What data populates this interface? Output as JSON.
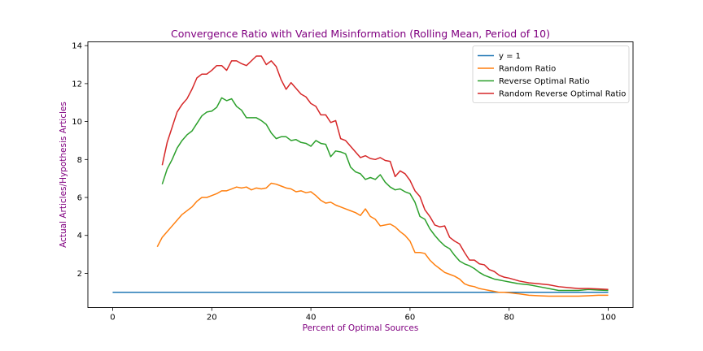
{
  "chart_data": {
    "type": "line",
    "title": "Convergence Ratio with Varied Misinformation (Rolling Mean, Period of 10)",
    "xlabel": "Percent of Optimal Sources",
    "ylabel": "Actual Articles/Hypothesis Articles",
    "xlim": [
      -5,
      105
    ],
    "ylim": [
      0.2,
      14.2
    ],
    "xticks": [
      0,
      20,
      40,
      60,
      80,
      100
    ],
    "yticks": [
      2,
      4,
      6,
      8,
      10,
      12,
      14
    ],
    "grid": false,
    "legend_position": "top-right",
    "colors": {
      "title": "#800080",
      "labels": "#800080"
    },
    "series": [
      {
        "name": "y = 1",
        "color": "#1f77b4",
        "x": [
          0,
          100
        ],
        "y": [
          1,
          1
        ]
      },
      {
        "name": "Random Ratio",
        "color": "#ff7f0e",
        "x": [
          9,
          10,
          12,
          14,
          16,
          17,
          18,
          19,
          20,
          21,
          22,
          23,
          24,
          25,
          26,
          27,
          28,
          29,
          30,
          31,
          32,
          33,
          34,
          35,
          36,
          37,
          38,
          39,
          40,
          41,
          42,
          43,
          44,
          45,
          46,
          47,
          48,
          49,
          50,
          51,
          52,
          53,
          54,
          55,
          56,
          57,
          58,
          59,
          60,
          61,
          62,
          63,
          64,
          65,
          66,
          67,
          68,
          69,
          70,
          71,
          72,
          73,
          74,
          75,
          76,
          77,
          78,
          79,
          80,
          82,
          84,
          86,
          88,
          90,
          92,
          94,
          96,
          98,
          100
        ],
        "y": [
          3.4,
          3.9,
          4.5,
          5.1,
          5.5,
          5.8,
          6.0,
          6.0,
          6.1,
          6.2,
          6.35,
          6.35,
          6.45,
          6.55,
          6.5,
          6.55,
          6.4,
          6.5,
          6.45,
          6.5,
          6.75,
          6.7,
          6.6,
          6.5,
          6.45,
          6.3,
          6.35,
          6.25,
          6.3,
          6.1,
          5.85,
          5.7,
          5.75,
          5.6,
          5.5,
          5.4,
          5.3,
          5.2,
          5.05,
          5.4,
          5.0,
          4.85,
          4.5,
          4.55,
          4.6,
          4.45,
          4.2,
          4.0,
          3.7,
          3.1,
          3.1,
          3.05,
          2.7,
          2.45,
          2.25,
          2.05,
          1.95,
          1.85,
          1.7,
          1.45,
          1.35,
          1.3,
          1.2,
          1.15,
          1.1,
          1.05,
          1.0,
          1.0,
          0.98,
          0.92,
          0.85,
          0.82,
          0.8,
          0.8,
          0.8,
          0.8,
          0.82,
          0.85,
          0.85
        ]
      },
      {
        "name": "Reverse Optimal Ratio",
        "color": "#2ca02c",
        "x": [
          10,
          11,
          12,
          13,
          14,
          15,
          16,
          17,
          18,
          19,
          20,
          21,
          22,
          23,
          24,
          25,
          26,
          27,
          28,
          29,
          30,
          31,
          32,
          33,
          34,
          35,
          36,
          37,
          38,
          39,
          40,
          41,
          42,
          43,
          44,
          45,
          46,
          47,
          48,
          49,
          50,
          51,
          52,
          53,
          54,
          55,
          56,
          57,
          58,
          59,
          60,
          61,
          62,
          63,
          64,
          65,
          66,
          67,
          68,
          69,
          70,
          71,
          72,
          73,
          74,
          75,
          76,
          77,
          78,
          79,
          80,
          82,
          84,
          86,
          88,
          90,
          92,
          94,
          96,
          98,
          100
        ],
        "y": [
          6.7,
          7.5,
          8.0,
          8.6,
          9.0,
          9.3,
          9.5,
          9.9,
          10.3,
          10.5,
          10.55,
          10.75,
          11.25,
          11.1,
          11.2,
          10.8,
          10.6,
          10.2,
          10.2,
          10.2,
          10.05,
          9.85,
          9.4,
          9.1,
          9.2,
          9.2,
          9.0,
          9.05,
          8.9,
          8.85,
          8.7,
          9.0,
          8.85,
          8.8,
          8.15,
          8.45,
          8.4,
          8.3,
          7.6,
          7.35,
          7.25,
          6.95,
          7.05,
          6.95,
          7.2,
          6.8,
          6.55,
          6.4,
          6.45,
          6.3,
          6.2,
          5.75,
          5.0,
          4.85,
          4.35,
          4.0,
          3.7,
          3.45,
          3.3,
          2.95,
          2.65,
          2.5,
          2.4,
          2.25,
          2.05,
          1.9,
          1.8,
          1.7,
          1.65,
          1.6,
          1.55,
          1.45,
          1.4,
          1.3,
          1.2,
          1.1,
          1.1,
          1.1,
          1.15,
          1.12,
          1.1
        ]
      },
      {
        "name": "Random Reverse Optimal Ratio",
        "color": "#d62728",
        "x": [
          10,
          11,
          12,
          13,
          14,
          15,
          16,
          17,
          18,
          19,
          20,
          21,
          22,
          23,
          24,
          25,
          26,
          27,
          28,
          29,
          30,
          31,
          32,
          33,
          34,
          35,
          36,
          37,
          38,
          39,
          40,
          41,
          42,
          43,
          44,
          45,
          46,
          47,
          48,
          49,
          50,
          51,
          52,
          53,
          54,
          55,
          56,
          57,
          58,
          59,
          60,
          61,
          62,
          63,
          64,
          65,
          66,
          67,
          68,
          69,
          70,
          71,
          72,
          73,
          74,
          75,
          76,
          77,
          78,
          79,
          80,
          82,
          84,
          86,
          88,
          90,
          92,
          94,
          96,
          98,
          100
        ],
        "y": [
          7.7,
          8.9,
          9.7,
          10.5,
          10.9,
          11.2,
          11.7,
          12.3,
          12.5,
          12.5,
          12.7,
          12.95,
          12.95,
          12.7,
          13.2,
          13.2,
          13.05,
          12.95,
          13.2,
          13.45,
          13.45,
          13.0,
          13.2,
          12.9,
          12.2,
          11.7,
          12.05,
          11.75,
          11.45,
          11.3,
          10.95,
          10.8,
          10.35,
          10.35,
          9.95,
          10.05,
          9.1,
          9.0,
          8.7,
          8.4,
          8.1,
          8.2,
          8.05,
          8.0,
          8.1,
          7.95,
          7.9,
          7.1,
          7.4,
          7.25,
          6.9,
          6.35,
          6.05,
          5.35,
          5.0,
          4.55,
          4.45,
          4.5,
          3.9,
          3.7,
          3.55,
          3.1,
          2.7,
          2.7,
          2.5,
          2.45,
          2.2,
          2.1,
          1.9,
          1.8,
          1.75,
          1.6,
          1.5,
          1.45,
          1.4,
          1.3,
          1.25,
          1.2,
          1.2,
          1.18,
          1.15
        ]
      }
    ]
  }
}
